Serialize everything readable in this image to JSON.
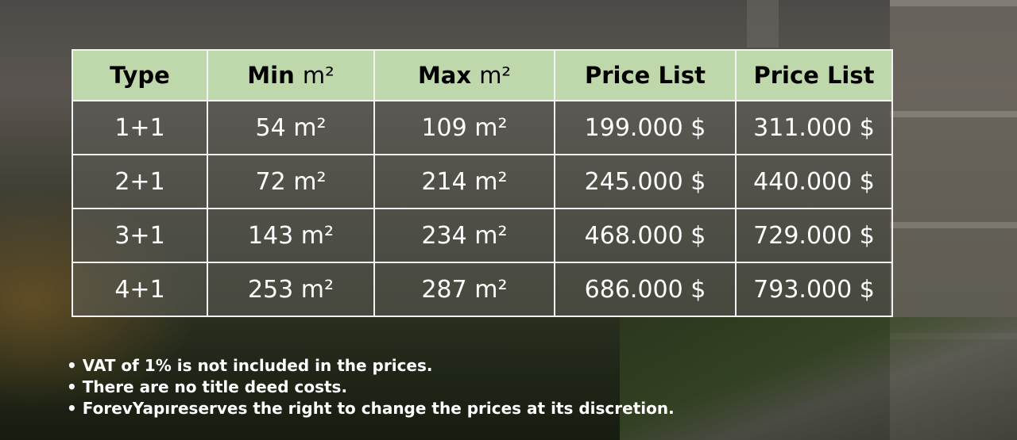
{
  "table": {
    "headers": [
      {
        "bold": "Type",
        "unit": ""
      },
      {
        "bold": "Min",
        "unit": "m²"
      },
      {
        "bold": "Max",
        "unit": "m²"
      },
      {
        "bold": "Price List",
        "unit": ""
      },
      {
        "bold": "Price List",
        "unit": ""
      }
    ],
    "rows": [
      [
        "1+1",
        "54 m²",
        "109 m²",
        "199.000 $",
        "311.000 $"
      ],
      [
        "2+1",
        "72 m²",
        "214 m²",
        "245.000 $",
        "440.000 $"
      ],
      [
        "3+1",
        "143 m²",
        "234 m²",
        "468.000 $",
        "729.000 $"
      ],
      [
        "4+1",
        "253 m²",
        "287 m²",
        "686.000 $",
        "793.000 $"
      ]
    ]
  },
  "notes": [
    "• VAT of 1% is not included in the prices.",
    "• There are no title deed costs.",
    "• ForevYapıreserves the right to change the prices at its discretion."
  ],
  "colors": {
    "header_bg": "#bfd8ab",
    "border": "#f2f2f2"
  }
}
